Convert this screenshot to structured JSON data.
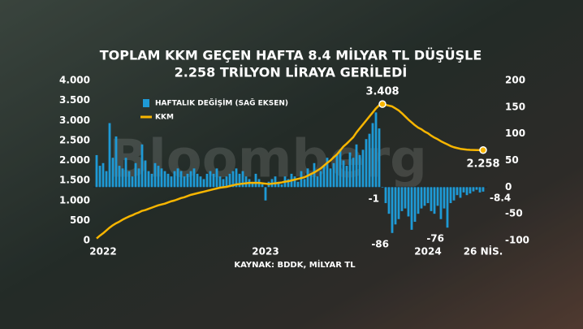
{
  "chart_data": {
    "type": "bar",
    "title": "TOPLAM KKM GEÇEN HAFTA 8.4 MİLYAR TL DÜŞÜŞLE",
    "subtitle": "2.258 TRİLYON LİRAYA GERİLEDİ",
    "source": "KAYNAK: BDDK, MİLYAR TL",
    "watermark": "Bloomberg",
    "categories": [
      null,
      null,
      "2022",
      null,
      null,
      null,
      null,
      null,
      null,
      null,
      null,
      null,
      null,
      null,
      null,
      null,
      null,
      null,
      null,
      null,
      null,
      null,
      null,
      null,
      null,
      null,
      null,
      null,
      null,
      null,
      null,
      null,
      null,
      null,
      null,
      null,
      null,
      null,
      null,
      null,
      null,
      null,
      null,
      null,
      null,
      null,
      null,
      null,
      null,
      null,
      null,
      null,
      "2023",
      null,
      null,
      null,
      null,
      null,
      null,
      null,
      null,
      null,
      null,
      null,
      null,
      null,
      null,
      null,
      null,
      null,
      null,
      null,
      null,
      null,
      null,
      null,
      null,
      null,
      null,
      null,
      null,
      null,
      null,
      null,
      null,
      null,
      null,
      null,
      null,
      null,
      null,
      null,
      null,
      null,
      null,
      null,
      null,
      null,
      null,
      null,
      null,
      null,
      "2024",
      null,
      null,
      null,
      null,
      null,
      null,
      null,
      null,
      null,
      null,
      null,
      null,
      null,
      null,
      null,
      null,
      "26 NİS."
    ],
    "series": [
      {
        "name": "HAFTALIK DEĞİŞİM (SAĞ EKSEN)",
        "type": "bar",
        "axis": "y2",
        "color": "#1e9ad6",
        "values": [
          60,
          40,
          45,
          30,
          120,
          55,
          95,
          40,
          35,
          55,
          30,
          20,
          45,
          35,
          80,
          50,
          30,
          25,
          45,
          40,
          35,
          30,
          25,
          20,
          30,
          35,
          30,
          20,
          25,
          30,
          35,
          25,
          20,
          15,
          25,
          30,
          25,
          35,
          20,
          15,
          20,
          25,
          30,
          35,
          25,
          30,
          20,
          15,
          10,
          25,
          15,
          5,
          -25,
          10,
          15,
          20,
          10,
          5,
          20,
          15,
          25,
          20,
          10,
          30,
          15,
          35,
          25,
          45,
          20,
          30,
          40,
          55,
          35,
          45,
          60,
          70,
          50,
          40,
          65,
          55,
          80,
          60,
          70,
          90,
          100,
          120,
          140,
          110,
          -1,
          -30,
          -50,
          -86,
          -70,
          -60,
          -45,
          -40,
          -55,
          -80,
          -65,
          -50,
          -40,
          -35,
          -30,
          -45,
          -50,
          -35,
          -60,
          -40,
          -76,
          -30,
          -25,
          -15,
          -20,
          -10,
          -15,
          -12,
          -8,
          -5,
          -10,
          -8.4
        ],
        "value_labels": [
          null,
          null,
          null,
          null,
          null,
          null,
          null,
          null,
          null,
          null,
          null,
          null,
          null,
          null,
          null,
          null,
          null,
          null,
          null,
          null,
          null,
          null,
          null,
          null,
          null,
          null,
          null,
          null,
          null,
          null,
          null,
          null,
          null,
          null,
          null,
          null,
          null,
          null,
          null,
          null,
          null,
          null,
          null,
          null,
          null,
          null,
          null,
          null,
          null,
          null,
          null,
          null,
          null,
          null,
          null,
          null,
          null,
          null,
          null,
          null,
          null,
          null,
          null,
          null,
          null,
          null,
          null,
          null,
          null,
          null,
          null,
          null,
          null,
          null,
          null,
          null,
          null,
          null,
          null,
          null,
          null,
          null,
          null,
          null,
          null,
          null,
          null,
          null,
          "-1",
          null,
          null,
          "-86",
          null,
          null,
          null,
          null,
          null,
          null,
          null,
          null,
          null,
          null,
          null,
          null,
          null,
          null,
          null,
          null,
          "-76",
          null,
          null,
          null,
          null,
          null,
          null,
          null,
          null,
          null,
          null,
          "-8.4"
        ]
      },
      {
        "name": "KKM",
        "type": "line",
        "color": "#f7b500",
        "values": [
          50,
          120,
          180,
          250,
          320,
          380,
          430,
          470,
          520,
          560,
          600,
          630,
          670,
          700,
          740,
          760,
          790,
          820,
          850,
          880,
          900,
          920,
          950,
          980,
          1000,
          1030,
          1060,
          1080,
          1110,
          1140,
          1160,
          1180,
          1200,
          1220,
          1240,
          1260,
          1280,
          1300,
          1320,
          1330,
          1340,
          1360,
          1380,
          1400,
          1410,
          1420,
          1430,
          1440,
          1440,
          1440,
          1440,
          1430,
          1420,
          1410,
          1420,
          1430,
          1440,
          1450,
          1470,
          1480,
          1500,
          1520,
          1540,
          1560,
          1580,
          1620,
          1660,
          1700,
          1750,
          1800,
          1870,
          1940,
          2000,
          2080,
          2150,
          2250,
          2350,
          2420,
          2500,
          2580,
          2700,
          2800,
          2900,
          3000,
          3100,
          3200,
          3300,
          3380,
          3408,
          3390,
          3370,
          3350,
          3300,
          3250,
          3180,
          3100,
          3020,
          2950,
          2880,
          2820,
          2780,
          2720,
          2680,
          2620,
          2570,
          2530,
          2480,
          2440,
          2400,
          2360,
          2330,
          2310,
          2290,
          2280,
          2270,
          2265,
          2262,
          2260,
          2259,
          2258
        ],
        "value_labels": [
          null,
          null,
          null,
          null,
          null,
          null,
          null,
          null,
          null,
          null,
          null,
          null,
          null,
          null,
          null,
          null,
          null,
          null,
          null,
          null,
          null,
          null,
          null,
          null,
          null,
          null,
          null,
          null,
          null,
          null,
          null,
          null,
          null,
          null,
          null,
          null,
          null,
          null,
          null,
          null,
          null,
          null,
          null,
          null,
          null,
          null,
          null,
          null,
          null,
          null,
          null,
          null,
          null,
          null,
          null,
          null,
          null,
          null,
          null,
          null,
          null,
          null,
          null,
          null,
          null,
          null,
          null,
          null,
          null,
          null,
          null,
          null,
          null,
          null,
          null,
          null,
          null,
          null,
          null,
          null,
          null,
          null,
          null,
          null,
          null,
          null,
          null,
          null,
          "3.408",
          null,
          null,
          null,
          null,
          null,
          null,
          null,
          null,
          null,
          null,
          null,
          null,
          null,
          null,
          null,
          null,
          null,
          null,
          null,
          null,
          null,
          null,
          null,
          null,
          null,
          null,
          null,
          null,
          null,
          null,
          "2.258"
        ]
      }
    ],
    "ylim": [
      0,
      4000
    ],
    "yticks": [
      0,
      500,
      {
        "value": 1000,
        "label": "1.000"
      },
      {
        "value": 1500,
        "label": "1.500"
      },
      {
        "value": 2000,
        "label": "2.000"
      },
      {
        "value": 2500,
        "label": "2.500"
      },
      {
        "value": 3000,
        "label": "3.000"
      },
      {
        "value": 3500,
        "label": "3.500"
      },
      {
        "value": 4000,
        "label": "4.000"
      }
    ],
    "y2lim": [
      -100,
      200
    ],
    "y2ticks": [
      -100,
      -50,
      0,
      50,
      100,
      150,
      200
    ],
    "grid": false
  }
}
